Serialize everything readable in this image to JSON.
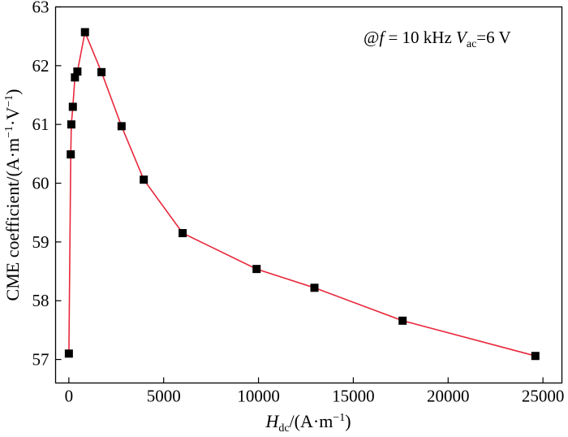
{
  "chart_data": {
    "type": "line",
    "title": "",
    "annotation": {
      "prefix": "@",
      "f_symbol": "f",
      "f_value": " = 10 kHz ",
      "v_symbol": "V",
      "v_sub": "ac",
      "v_value": "=6 V"
    },
    "xlabel": {
      "symbol": "H",
      "sub": "dc",
      "unit_main": "/(A·m",
      "unit_sup": "−1",
      "unit_close": ")"
    },
    "ylabel": {
      "main": "CME coefficient/(A·m",
      "sup1": "−1",
      "mid": "·V",
      "sup2": "−1",
      "close": ")"
    },
    "xlim": [
      -700,
      26000
    ],
    "ylim": [
      56.6,
      63.0
    ],
    "xticks": [
      0,
      5000,
      10000,
      15000,
      20000,
      25000
    ],
    "yticks": [
      57,
      58,
      59,
      60,
      61,
      62,
      63
    ],
    "grid": false,
    "legend": "none",
    "series_color": "#e8283c",
    "marker_color": "#000000",
    "series": [
      {
        "x": [
          0,
          100,
          130,
          210,
          320,
          450,
          850,
          1720,
          2780,
          3950,
          6000,
          9900,
          12950,
          17600,
          24600
        ],
        "y": [
          57.1,
          60.49,
          61.0,
          61.3,
          61.8,
          61.9,
          62.57,
          61.89,
          60.97,
          60.06,
          59.15,
          58.54,
          58.22,
          57.66,
          57.06
        ]
      }
    ]
  }
}
